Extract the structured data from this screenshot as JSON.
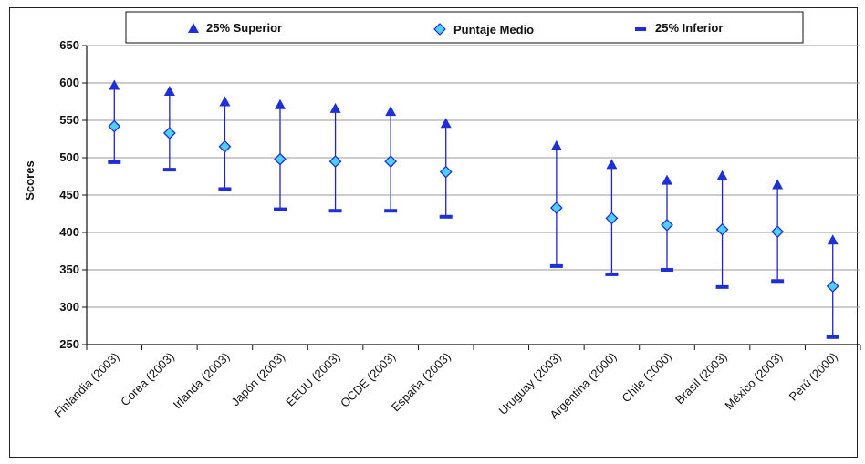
{
  "chart_data": {
    "type": "scatter",
    "title": "",
    "xlabel": "",
    "ylabel": "Scores",
    "ylim": [
      250,
      650
    ],
    "yticks": [
      250,
      300,
      350,
      400,
      450,
      500,
      550,
      600,
      650
    ],
    "grid": true,
    "legend_position": "top",
    "categories": [
      "Finlandia (2003)",
      "Corea (2003)",
      "Irlanda (2003)",
      "Japón (2003)",
      "EEUU (2003)",
      "OCDE (2003)",
      "España (2003)",
      "",
      "Uruguay (2003)",
      "Argentina (2000)",
      "Chile (2000)",
      "Brasil (2003)",
      "México (2003)",
      "Perú (2000)"
    ],
    "series": [
      {
        "name": "25% Superior",
        "marker": "triangle",
        "values": [
          597,
          589,
          575,
          571,
          566,
          562,
          546,
          null,
          516,
          491,
          470,
          476,
          464,
          390
        ]
      },
      {
        "name": "Puntaje Medio",
        "marker": "diamond",
        "values": [
          542,
          533,
          515,
          498,
          495,
          495,
          481,
          null,
          433,
          419,
          410,
          404,
          401,
          328
        ]
      },
      {
        "name": "25% Inferior",
        "marker": "dash",
        "values": [
          494,
          484,
          458,
          431,
          429,
          429,
          421,
          null,
          355,
          344,
          350,
          327,
          335,
          260
        ]
      }
    ],
    "colors": {
      "marker": "#1f2fd6",
      "diamond_fill": "#4fd0f0",
      "whisker": "#2222cc",
      "grid": "#999999"
    }
  }
}
